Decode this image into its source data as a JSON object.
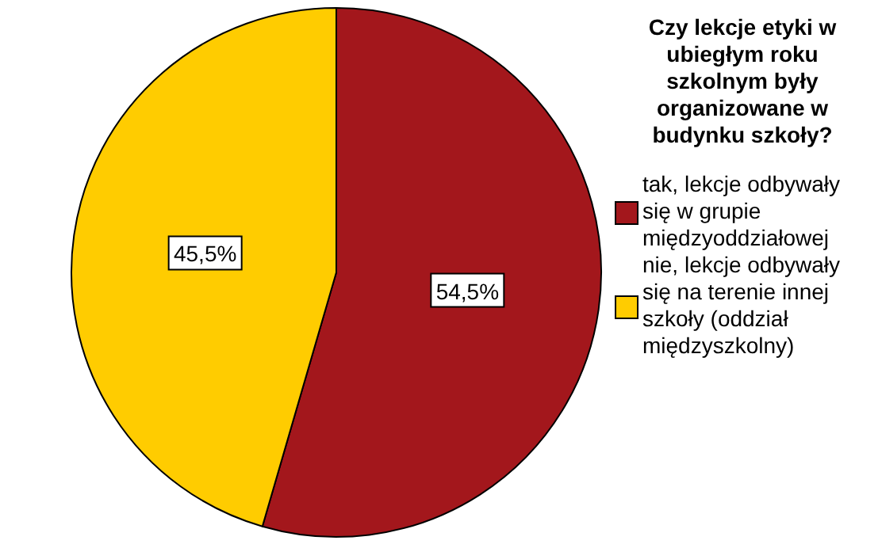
{
  "chart_data": {
    "type": "pie",
    "legend_title": "Czy lekcje etyki w ubiegłym roku szkolnym były organizowane w budynku szkoły?",
    "categories": [
      "tak, lekcje odbywały się w grupie międzyoddziałowej",
      "nie, lekcje odbywały się na terenie innej szkoły (oddział międzyszkolny)"
    ],
    "values": [
      54.5,
      45.5
    ],
    "colors": [
      "#a3171c",
      "#ffcc00"
    ],
    "value_labels": [
      "54,5%",
      "45,5%"
    ],
    "legend": "right"
  }
}
